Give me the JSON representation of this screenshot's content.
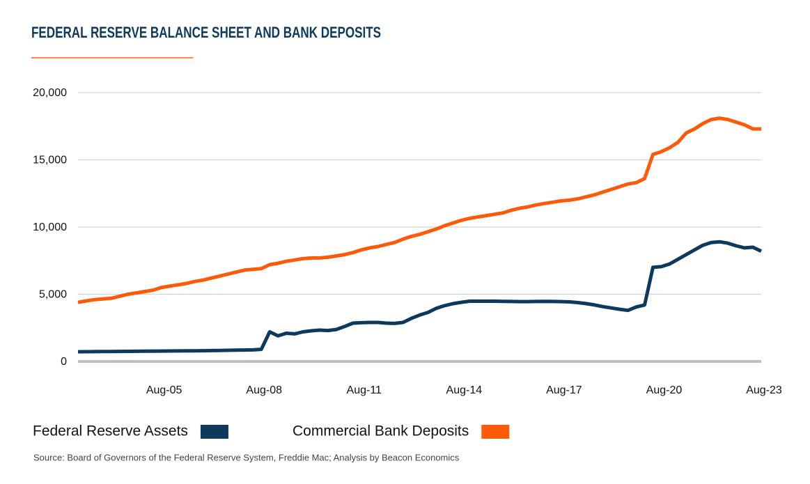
{
  "chart_data": {
    "type": "line",
    "title": "FEDERAL RESERVE BALANCE SHEET AND BANK DEPOSITS",
    "source": "Source: Board of Governors of the Federal Reserve System, Freddie Mac; Analysis by Beacon Economics",
    "categories": [
      null,
      null,
      null,
      null,
      null,
      null,
      null,
      null,
      null,
      null,
      "Aug-05",
      null,
      null,
      null,
      null,
      null,
      null,
      null,
      null,
      null,
      null,
      null,
      "Aug-08",
      null,
      null,
      null,
      null,
      null,
      null,
      null,
      null,
      null,
      null,
      null,
      "Aug-11",
      null,
      null,
      null,
      null,
      null,
      null,
      null,
      null,
      null,
      null,
      null,
      "Aug-14",
      null,
      null,
      null,
      null,
      null,
      null,
      null,
      null,
      null,
      null,
      null,
      "Aug-17",
      null,
      null,
      null,
      null,
      null,
      null,
      null,
      null,
      null,
      null,
      null,
      "Aug-20",
      null,
      null,
      null,
      null,
      null,
      null,
      null,
      null,
      null,
      null,
      null,
      "Aug-23"
    ],
    "series": [
      {
        "name": "Federal Reserve Assets",
        "color": "#0d3a5c",
        "values": [
          720,
          725,
          730,
          735,
          740,
          745,
          750,
          755,
          760,
          765,
          770,
          775,
          780,
          785,
          790,
          800,
          810,
          820,
          830,
          840,
          850,
          860,
          900,
          2200,
          1900,
          2100,
          2050,
          2200,
          2280,
          2330,
          2300,
          2380,
          2600,
          2850,
          2880,
          2900,
          2900,
          2850,
          2830,
          2900,
          3200,
          3450,
          3650,
          3950,
          4150,
          4300,
          4400,
          4480,
          4480,
          4480,
          4480,
          4470,
          4460,
          4450,
          4450,
          4460,
          4470,
          4460,
          4450,
          4430,
          4380,
          4300,
          4200,
          4080,
          3980,
          3880,
          3800,
          4050,
          4200,
          7000,
          7050,
          7250,
          7600,
          7950,
          8300,
          8650,
          8850,
          8900,
          8800,
          8600,
          8450,
          8500,
          8200
        ]
      },
      {
        "name": "Commercial Bank Deposits",
        "color": "#ff5a0a",
        "values": [
          4400,
          4500,
          4600,
          4650,
          4700,
          4850,
          5000,
          5100,
          5200,
          5300,
          5500,
          5600,
          5700,
          5800,
          5950,
          6050,
          6200,
          6350,
          6500,
          6650,
          6800,
          6850,
          6900,
          7200,
          7300,
          7450,
          7550,
          7650,
          7700,
          7700,
          7750,
          7850,
          7950,
          8100,
          8300,
          8450,
          8550,
          8700,
          8850,
          9100,
          9300,
          9450,
          9650,
          9850,
          10100,
          10300,
          10500,
          10650,
          10750,
          10850,
          10950,
          11050,
          11250,
          11400,
          11500,
          11650,
          11750,
          11850,
          11950,
          12000,
          12100,
          12250,
          12400,
          12600,
          12800,
          13000,
          13200,
          13300,
          13600,
          15400,
          15600,
          15900,
          16300,
          17000,
          17300,
          17700,
          18000,
          18100,
          18000,
          17800,
          17600,
          17300,
          17300
        ]
      }
    ],
    "ylim": [
      0,
      20000
    ],
    "yticks": [
      0,
      {
        "value": 5000,
        "label": "5,000"
      },
      {
        "value": 10000,
        "label": "10,000"
      },
      {
        "value": 15000,
        "label": "15,000"
      },
      {
        "value": 20000,
        "label": "20,000"
      }
    ],
    "grid": true
  }
}
